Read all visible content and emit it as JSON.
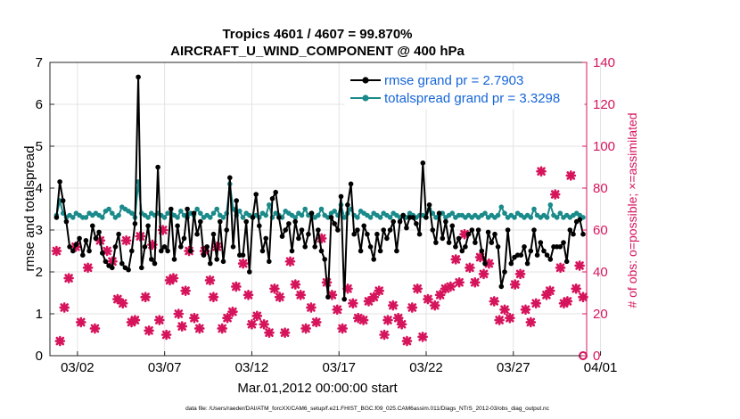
{
  "chart_data": {
    "type": "line",
    "title": "Tropics 4601 / 4607 = 99.870%",
    "subtitle": "AIRCRAFT_U_WIND_COMPONENT @ 400 hPa",
    "xlabel": "Mar.01,2012 00:00:00 start",
    "ylabel": "rmse and totalspread",
    "ylabel_right": "# of obs: o=possible; ×=assimilated",
    "footer": "data file: /Users/raeder/DAI/ATM_forcXX/CAM6_setup/f.e21.FHIST_BGC.f09_025.CAM6assim.011/Diags_NTrS_2012-03/obs_diag_output.nc",
    "xlim": [
      0.6,
      31.0
    ],
    "ylim": [
      0,
      7
    ],
    "ylim_right": [
      0,
      140
    ],
    "x_ticks": [
      2,
      7,
      12,
      17,
      22,
      27,
      32
    ],
    "x_tick_labels": [
      "03/02",
      "03/07",
      "03/12",
      "03/17",
      "03/22",
      "03/27",
      "04/01"
    ],
    "y_ticks": [
      0,
      1,
      2,
      3,
      4,
      5,
      6,
      7
    ],
    "y_tick_labels": [
      "0",
      "1",
      "2",
      "3",
      "4",
      "5",
      "6",
      "7"
    ],
    "y_right_ticks": [
      0,
      20,
      40,
      60,
      80,
      100,
      120,
      140
    ],
    "y_right_tick_labels": [
      "0",
      "20",
      "40",
      "60",
      "80",
      "100",
      "120",
      "140"
    ],
    "legend_position": "top-right",
    "series": [
      {
        "name": "rmse grand pr = 2.7903",
        "color": "#000000",
        "axis": "left",
        "values": [
          3.3,
          4.15,
          3.7,
          3.2,
          2.6,
          2.5,
          2.65,
          2.8,
          2.4,
          2.75,
          2.5,
          3.1,
          2.8,
          2.95,
          2.45,
          2.25,
          2.15,
          2.1,
          2.6,
          2.9,
          2.2,
          2.1,
          2.05,
          2.5,
          3.15,
          6.65,
          2.1,
          2.6,
          3.1,
          2.3,
          2.2,
          4.5,
          2.5,
          2.6,
          2.5,
          3.5,
          2.3,
          3.1,
          2.6,
          2.8,
          3.5,
          2.5,
          3.4,
          2.9,
          3.2,
          2.4,
          2.6,
          2.2,
          2.9,
          2.3,
          3.2,
          2.25,
          3.0,
          4.25,
          2.6,
          3.7,
          2.4,
          2.4,
          3.2,
          2.0,
          3.3,
          3.85,
          3.1,
          2.5,
          2.8,
          2.25,
          3.75,
          3.9,
          3.3,
          2.85,
          3.0,
          3.15,
          2.5,
          3.2,
          2.8,
          3.0,
          2.6,
          2.9,
          3.4,
          2.6,
          3.0,
          2.5,
          2.3,
          1.4,
          3.3,
          3.15,
          3.0,
          3.8,
          1.35,
          3.6,
          4.1,
          2.9,
          3.0,
          2.5,
          3.1,
          2.9,
          2.6,
          2.3,
          2.9,
          2.5,
          3.0,
          2.8,
          3.0,
          3.2,
          2.5,
          3.2,
          3.35,
          3.05,
          3.3,
          3.3,
          3.15,
          2.9,
          4.6,
          3.3,
          3.6,
          3.0,
          2.7,
          3.4,
          2.8,
          3.2,
          2.7,
          3.1,
          2.6,
          2.8,
          2.5,
          2.6,
          2.9,
          3.0,
          2.7,
          3.0,
          2.5,
          2.2,
          2.95,
          2.7,
          2.9,
          2.6,
          1.65,
          2.0,
          3.0,
          2.2,
          2.35,
          2.4,
          2.4,
          2.6,
          2.2,
          2.5,
          3.0,
          2.4,
          2.7,
          2.5,
          2.4,
          2.3,
          2.6,
          2.6,
          2.6,
          2.7,
          2.25,
          3.0,
          2.9,
          3.2,
          3.25,
          2.9
        ]
      },
      {
        "name": "totalspread grand pr = 3.3298",
        "color": "#1a8a8a",
        "axis": "left",
        "values": [
          3.35,
          3.7,
          3.4,
          3.3,
          3.35,
          3.3,
          3.4,
          3.35,
          3.3,
          3.3,
          3.4,
          3.35,
          3.4,
          3.35,
          3.3,
          3.45,
          3.5,
          3.4,
          3.3,
          3.35,
          3.55,
          3.5,
          3.45,
          3.4,
          3.3,
          4.15,
          3.4,
          3.35,
          3.3,
          3.4,
          3.35,
          3.4,
          3.35,
          3.3,
          3.4,
          3.4,
          3.35,
          3.3,
          3.45,
          3.35,
          3.3,
          3.4,
          3.35,
          3.5,
          3.4,
          3.3,
          3.35,
          3.3,
          3.4,
          3.5,
          3.35,
          3.3,
          3.4,
          4.1,
          3.5,
          3.35,
          3.45,
          3.3,
          3.4,
          3.35,
          3.3,
          3.35,
          3.3,
          3.4,
          3.35,
          3.6,
          3.3,
          3.4,
          3.35,
          3.3,
          3.45,
          3.4,
          3.35,
          3.3,
          3.4,
          3.35,
          3.5,
          3.35,
          3.4,
          3.3,
          3.35,
          3.5,
          3.35,
          3.3,
          3.4,
          3.45,
          3.35,
          3.6,
          3.3,
          3.4,
          3.5,
          3.35,
          3.3,
          3.45,
          3.4,
          3.35,
          3.3,
          3.4,
          3.35,
          3.3,
          3.4,
          3.35,
          3.3,
          3.4,
          3.35,
          3.3,
          3.35,
          3.3,
          3.4,
          3.35,
          3.3,
          3.35,
          3.35,
          3.3,
          3.5,
          3.4,
          3.3,
          3.35,
          3.4,
          3.3,
          3.35,
          3.4,
          3.3,
          3.35,
          3.35,
          3.3,
          3.35,
          3.3,
          3.35,
          3.3,
          3.35,
          3.4,
          3.3,
          3.35,
          3.3,
          3.35,
          3.55,
          3.4,
          3.3,
          3.35,
          3.3,
          3.4,
          3.35,
          3.3,
          3.35,
          3.3,
          3.5,
          3.35,
          3.3,
          3.35,
          3.3,
          3.6,
          3.35,
          3.3,
          3.4,
          3.3,
          3.35,
          3.3,
          3.35,
          3.4,
          3.35,
          3.3
        ]
      }
    ],
    "obs_counts": {
      "name": "# of obs assimilated",
      "color": "#d6145c",
      "axis": "right",
      "points": [
        [
          0.8,
          50
        ],
        [
          1.0,
          7
        ],
        [
          1.25,
          23
        ],
        [
          1.5,
          37
        ],
        [
          1.9,
          52
        ],
        [
          2.2,
          16
        ],
        [
          2.6,
          42
        ],
        [
          3.0,
          13
        ],
        [
          3.3,
          55
        ],
        [
          3.7,
          50
        ],
        [
          4.0,
          45
        ],
        [
          4.3,
          27
        ],
        [
          4.6,
          25
        ],
        [
          4.8,
          55
        ],
        [
          5.1,
          16
        ],
        [
          5.3,
          17
        ],
        [
          5.6,
          57
        ],
        [
          5.9,
          28
        ],
        [
          6.1,
          12
        ],
        [
          6.3,
          53
        ],
        [
          6.7,
          17
        ],
        [
          6.9,
          60
        ],
        [
          7.1,
          10
        ],
        [
          7.3,
          36
        ],
        [
          7.5,
          37
        ],
        [
          7.8,
          20
        ],
        [
          8.0,
          14
        ],
        [
          8.2,
          31
        ],
        [
          8.4,
          50
        ],
        [
          8.7,
          18
        ],
        [
          9.0,
          13
        ],
        [
          9.3,
          50
        ],
        [
          9.6,
          36
        ],
        [
          9.8,
          28
        ],
        [
          10.0,
          52
        ],
        [
          10.3,
          13
        ],
        [
          10.6,
          18
        ],
        [
          10.9,
          21
        ],
        [
          11.1,
          33
        ],
        [
          11.5,
          44
        ],
        [
          11.8,
          29
        ],
        [
          12.0,
          15
        ],
        [
          12.3,
          19
        ],
        [
          12.7,
          15
        ],
        [
          13.0,
          11
        ],
        [
          13.3,
          32
        ],
        [
          13.6,
          28
        ],
        [
          13.9,
          11
        ],
        [
          14.2,
          45
        ],
        [
          14.5,
          34
        ],
        [
          14.8,
          29
        ],
        [
          15.1,
          13
        ],
        [
          15.4,
          23
        ],
        [
          15.7,
          16
        ],
        [
          16.0,
          56
        ],
        [
          16.3,
          35
        ],
        [
          16.6,
          29
        ],
        [
          16.9,
          22
        ],
        [
          17.2,
          13
        ],
        [
          17.5,
          32
        ],
        [
          17.8,
          25
        ],
        [
          18.1,
          18
        ],
        [
          18.4,
          17
        ],
        [
          18.7,
          26
        ],
        [
          19.0,
          28
        ],
        [
          19.3,
          31
        ],
        [
          19.6,
          10
        ],
        [
          19.8,
          17
        ],
        [
          20.1,
          24
        ],
        [
          20.4,
          18
        ],
        [
          20.6,
          15
        ],
        [
          20.9,
          7
        ],
        [
          21.2,
          23
        ],
        [
          21.5,
          32
        ],
        [
          21.8,
          9
        ],
        [
          22.1,
          27
        ],
        [
          22.5,
          24
        ],
        [
          22.8,
          29
        ],
        [
          23.1,
          32
        ],
        [
          23.4,
          33
        ],
        [
          23.7,
          46
        ],
        [
          23.9,
          35
        ],
        [
          24.2,
          58
        ],
        [
          24.5,
          42
        ],
        [
          24.8,
          35
        ],
        [
          25.1,
          47
        ],
        [
          25.3,
          39
        ],
        [
          25.6,
          44
        ],
        [
          25.9,
          26
        ],
        [
          26.2,
          17
        ],
        [
          26.5,
          22
        ],
        [
          26.8,
          18
        ],
        [
          27.1,
          34
        ],
        [
          27.4,
          39
        ],
        [
          27.7,
          22
        ],
        [
          28.0,
          16
        ],
        [
          28.3,
          25
        ],
        [
          28.6,
          88
        ],
        [
          28.9,
          29
        ],
        [
          29.1,
          31
        ],
        [
          29.4,
          77
        ],
        [
          29.7,
          42
        ],
        [
          29.9,
          25
        ],
        [
          30.1,
          26
        ],
        [
          30.3,
          86
        ],
        [
          30.6,
          32
        ],
        [
          30.8,
          43
        ],
        [
          31.0,
          28
        ]
      ]
    },
    "obs_zero_marker": {
      "x": 31.0,
      "value": 0,
      "label": "o"
    }
  }
}
